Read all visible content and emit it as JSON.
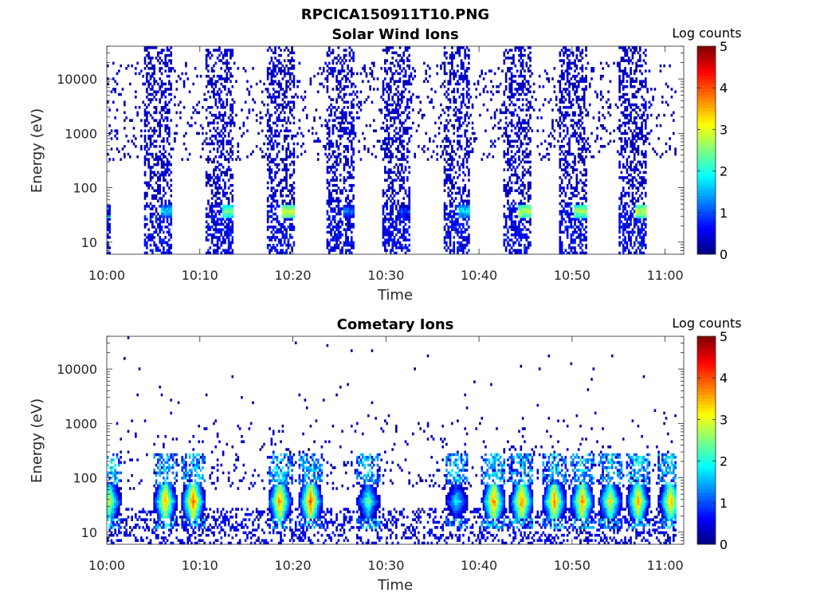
{
  "figure": {
    "title": "RPCICA150911T10.PNG"
  },
  "colormap": [
    "#00007f",
    "#0000ff",
    "#007fff",
    "#00ffff",
    "#7fff7f",
    "#ffff00",
    "#ff7f00",
    "#ff0000",
    "#7f0000"
  ],
  "chart_data": [
    {
      "type": "heatmap",
      "title": "Solar Wind Ions",
      "xlabel": "Time",
      "ylabel": "Energy (eV)",
      "y_scale": "log",
      "xlim": [
        "10:00",
        "11:02"
      ],
      "ylim": [
        6,
        40000
      ],
      "x_ticks": [
        "10:00",
        "10:10",
        "10:20",
        "10:30",
        "10:40",
        "10:50",
        "11:00"
      ],
      "y_ticks": [
        {
          "value": 10,
          "label": "10"
        },
        {
          "value": 100,
          "label": "100"
        },
        {
          "value": 1000,
          "label": "1000"
        },
        {
          "value": 10000,
          "label": "10000"
        }
      ],
      "colorbar": {
        "label": "Log counts",
        "range": [
          0,
          5
        ],
        "ticks": [
          "0",
          "1",
          "2",
          "3",
          "4",
          "5"
        ]
      },
      "pattern": {
        "kind": "solar_wind",
        "sweep_minutes": [
          5.5,
          12.0,
          18.5,
          25.0,
          31.0,
          37.5,
          44.0,
          50.0,
          56.5
        ],
        "sweep_width_minutes": 3.0,
        "peak_energy_eV": 35,
        "peak_log_counts": [
          1.7,
          2.4,
          2.9,
          1.2,
          1.0,
          1.8,
          2.8,
          2.6,
          2.8
        ],
        "background_energy_range_eV": [
          300,
          20000
        ]
      }
    },
    {
      "type": "heatmap",
      "title": "Cometary Ions",
      "xlabel": "Time",
      "ylabel": "Energy (eV)",
      "y_scale": "log",
      "xlim": [
        "10:00",
        "11:02"
      ],
      "ylim": [
        6,
        40000
      ],
      "x_ticks": [
        "10:00",
        "10:10",
        "10:20",
        "10:30",
        "10:40",
        "10:50",
        "11:00"
      ],
      "y_ticks": [
        {
          "value": 10,
          "label": "10"
        },
        {
          "value": 100,
          "label": "100"
        },
        {
          "value": 1000,
          "label": "1000"
        },
        {
          "value": 10000,
          "label": "10000"
        }
      ],
      "colorbar": {
        "label": "Log counts",
        "range": [
          0,
          5
        ],
        "ticks": [
          "0",
          "1",
          "2",
          "3",
          "4",
          "5"
        ]
      },
      "pattern": {
        "kind": "cometary",
        "burst_minutes": [
          0.2,
          6.2,
          9.2,
          18.5,
          21.8,
          28.0,
          37.5,
          41.5,
          44.5,
          48.0,
          51.0,
          54.0,
          57.0,
          60.5
        ],
        "burst_log_counts": [
          3.0,
          3.6,
          4.0,
          3.8,
          4.0,
          2.4,
          2.0,
          3.8,
          3.9,
          3.8,
          3.8,
          3.2,
          3.6,
          3.6
        ],
        "peak_energy_eV": 35,
        "background_energy_range_eV": [
          60,
          1500
        ]
      }
    }
  ]
}
